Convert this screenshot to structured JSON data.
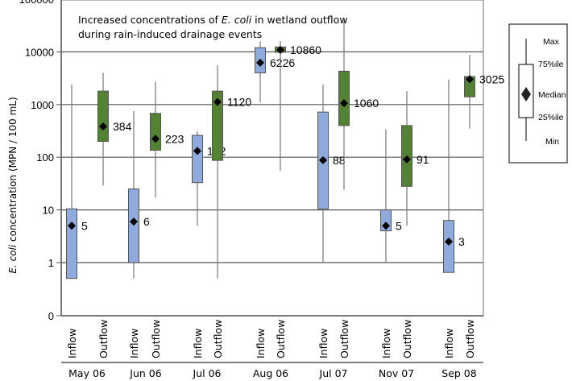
{
  "chart_data": {
    "type": "box",
    "title": "",
    "annotation": {
      "line1_prefix": "Increased concentrations of ",
      "line1_italic": "E. coli",
      "line1_suffix": " in wetland outflow",
      "line2": "during rain-induced drainage events"
    },
    "ylabel_italic": "E. coli",
    "ylabel_rest": " concentration (MPN / 100 mL)",
    "yscale": "log",
    "ylim": [
      0.1,
      100000
    ],
    "yticks": [
      {
        "value": 0.1,
        "label": "0"
      },
      {
        "value": 1,
        "label": "1"
      },
      {
        "value": 10,
        "label": "10"
      },
      {
        "value": 100,
        "label": "100"
      },
      {
        "value": 1000,
        "label": "1000"
      },
      {
        "value": 10000,
        "label": "10000"
      },
      {
        "value": 100000,
        "label": "100000"
      }
    ],
    "colors": {
      "Inflow": "#8faadc",
      "Outflow": "#548235",
      "gridline": "#404040"
    },
    "groups": [
      {
        "label": "May 06",
        "boxes": [
          {
            "category": "Inflow",
            "min": 0.5,
            "q1": 0.5,
            "median": 5,
            "q3": 10.5,
            "max": 2400,
            "median_label": "5"
          },
          {
            "category": "Outflow",
            "min": 29,
            "q1": 200,
            "median": 384,
            "q3": 1800,
            "max": 4000,
            "median_label": "384"
          }
        ]
      },
      {
        "label": "Jun 06",
        "boxes": [
          {
            "category": "Inflow",
            "min": 0.5,
            "q1": 1,
            "median": 6,
            "q3": 25,
            "max": 750,
            "median_label": "6"
          },
          {
            "category": "Outflow",
            "min": 17,
            "q1": 136,
            "median": 223,
            "q3": 680,
            "max": 2700,
            "median_label": "223"
          }
        ]
      },
      {
        "label": "Jul 06",
        "boxes": [
          {
            "category": "Inflow",
            "min": 5,
            "q1": 33,
            "median": 132,
            "q3": 260,
            "max": 310,
            "median_label": "132"
          },
          {
            "category": "Outflow",
            "min": 0.5,
            "q1": 87,
            "median": 1120,
            "q3": 1800,
            "max": 5500,
            "median_label": "1120"
          }
        ]
      },
      {
        "label": "Aug 06",
        "boxes": [
          {
            "category": "Inflow",
            "min": 1100,
            "q1": 4000,
            "median": 6226,
            "q3": 12000,
            "max": 16000,
            "median_label": "6226"
          },
          {
            "category": "Outflow",
            "min": 55,
            "q1": 9800,
            "median": 10860,
            "q3": 12400,
            "max": 16000,
            "median_label": "10860"
          }
        ]
      },
      {
        "label": "Jul 07",
        "boxes": [
          {
            "category": "Inflow",
            "min": 1,
            "q1": 10.5,
            "median": 88,
            "q3": 720,
            "max": 2400,
            "median_label": "88"
          },
          {
            "category": "Outflow",
            "min": 24,
            "q1": 400,
            "median": 1060,
            "q3": 4300,
            "max": 40000,
            "median_label": "1060"
          }
        ]
      },
      {
        "label": "Nov 07",
        "boxes": [
          {
            "category": "Inflow",
            "min": 1,
            "q1": 4,
            "median": 5,
            "q3": 10,
            "max": 340,
            "median_label": "5"
          },
          {
            "category": "Outflow",
            "min": 5,
            "q1": 28,
            "median": 91,
            "q3": 400,
            "max": 1800,
            "median_label": "91"
          }
        ]
      },
      {
        "label": "Sep 08",
        "boxes": [
          {
            "category": "Inflow",
            "min": 0.65,
            "q1": 0.65,
            "median": 2.5,
            "q3": 6.3,
            "max": 3000,
            "median_label": "3"
          },
          {
            "category": "Outflow",
            "min": 350,
            "q1": 1400,
            "median": 3025,
            "q3": 3400,
            "max": 8800,
            "median_label": "3025"
          }
        ]
      }
    ],
    "legend": {
      "placement": "right",
      "items": [
        "Max",
        "75%ile",
        "Median",
        "25%ile",
        "Min"
      ]
    }
  }
}
